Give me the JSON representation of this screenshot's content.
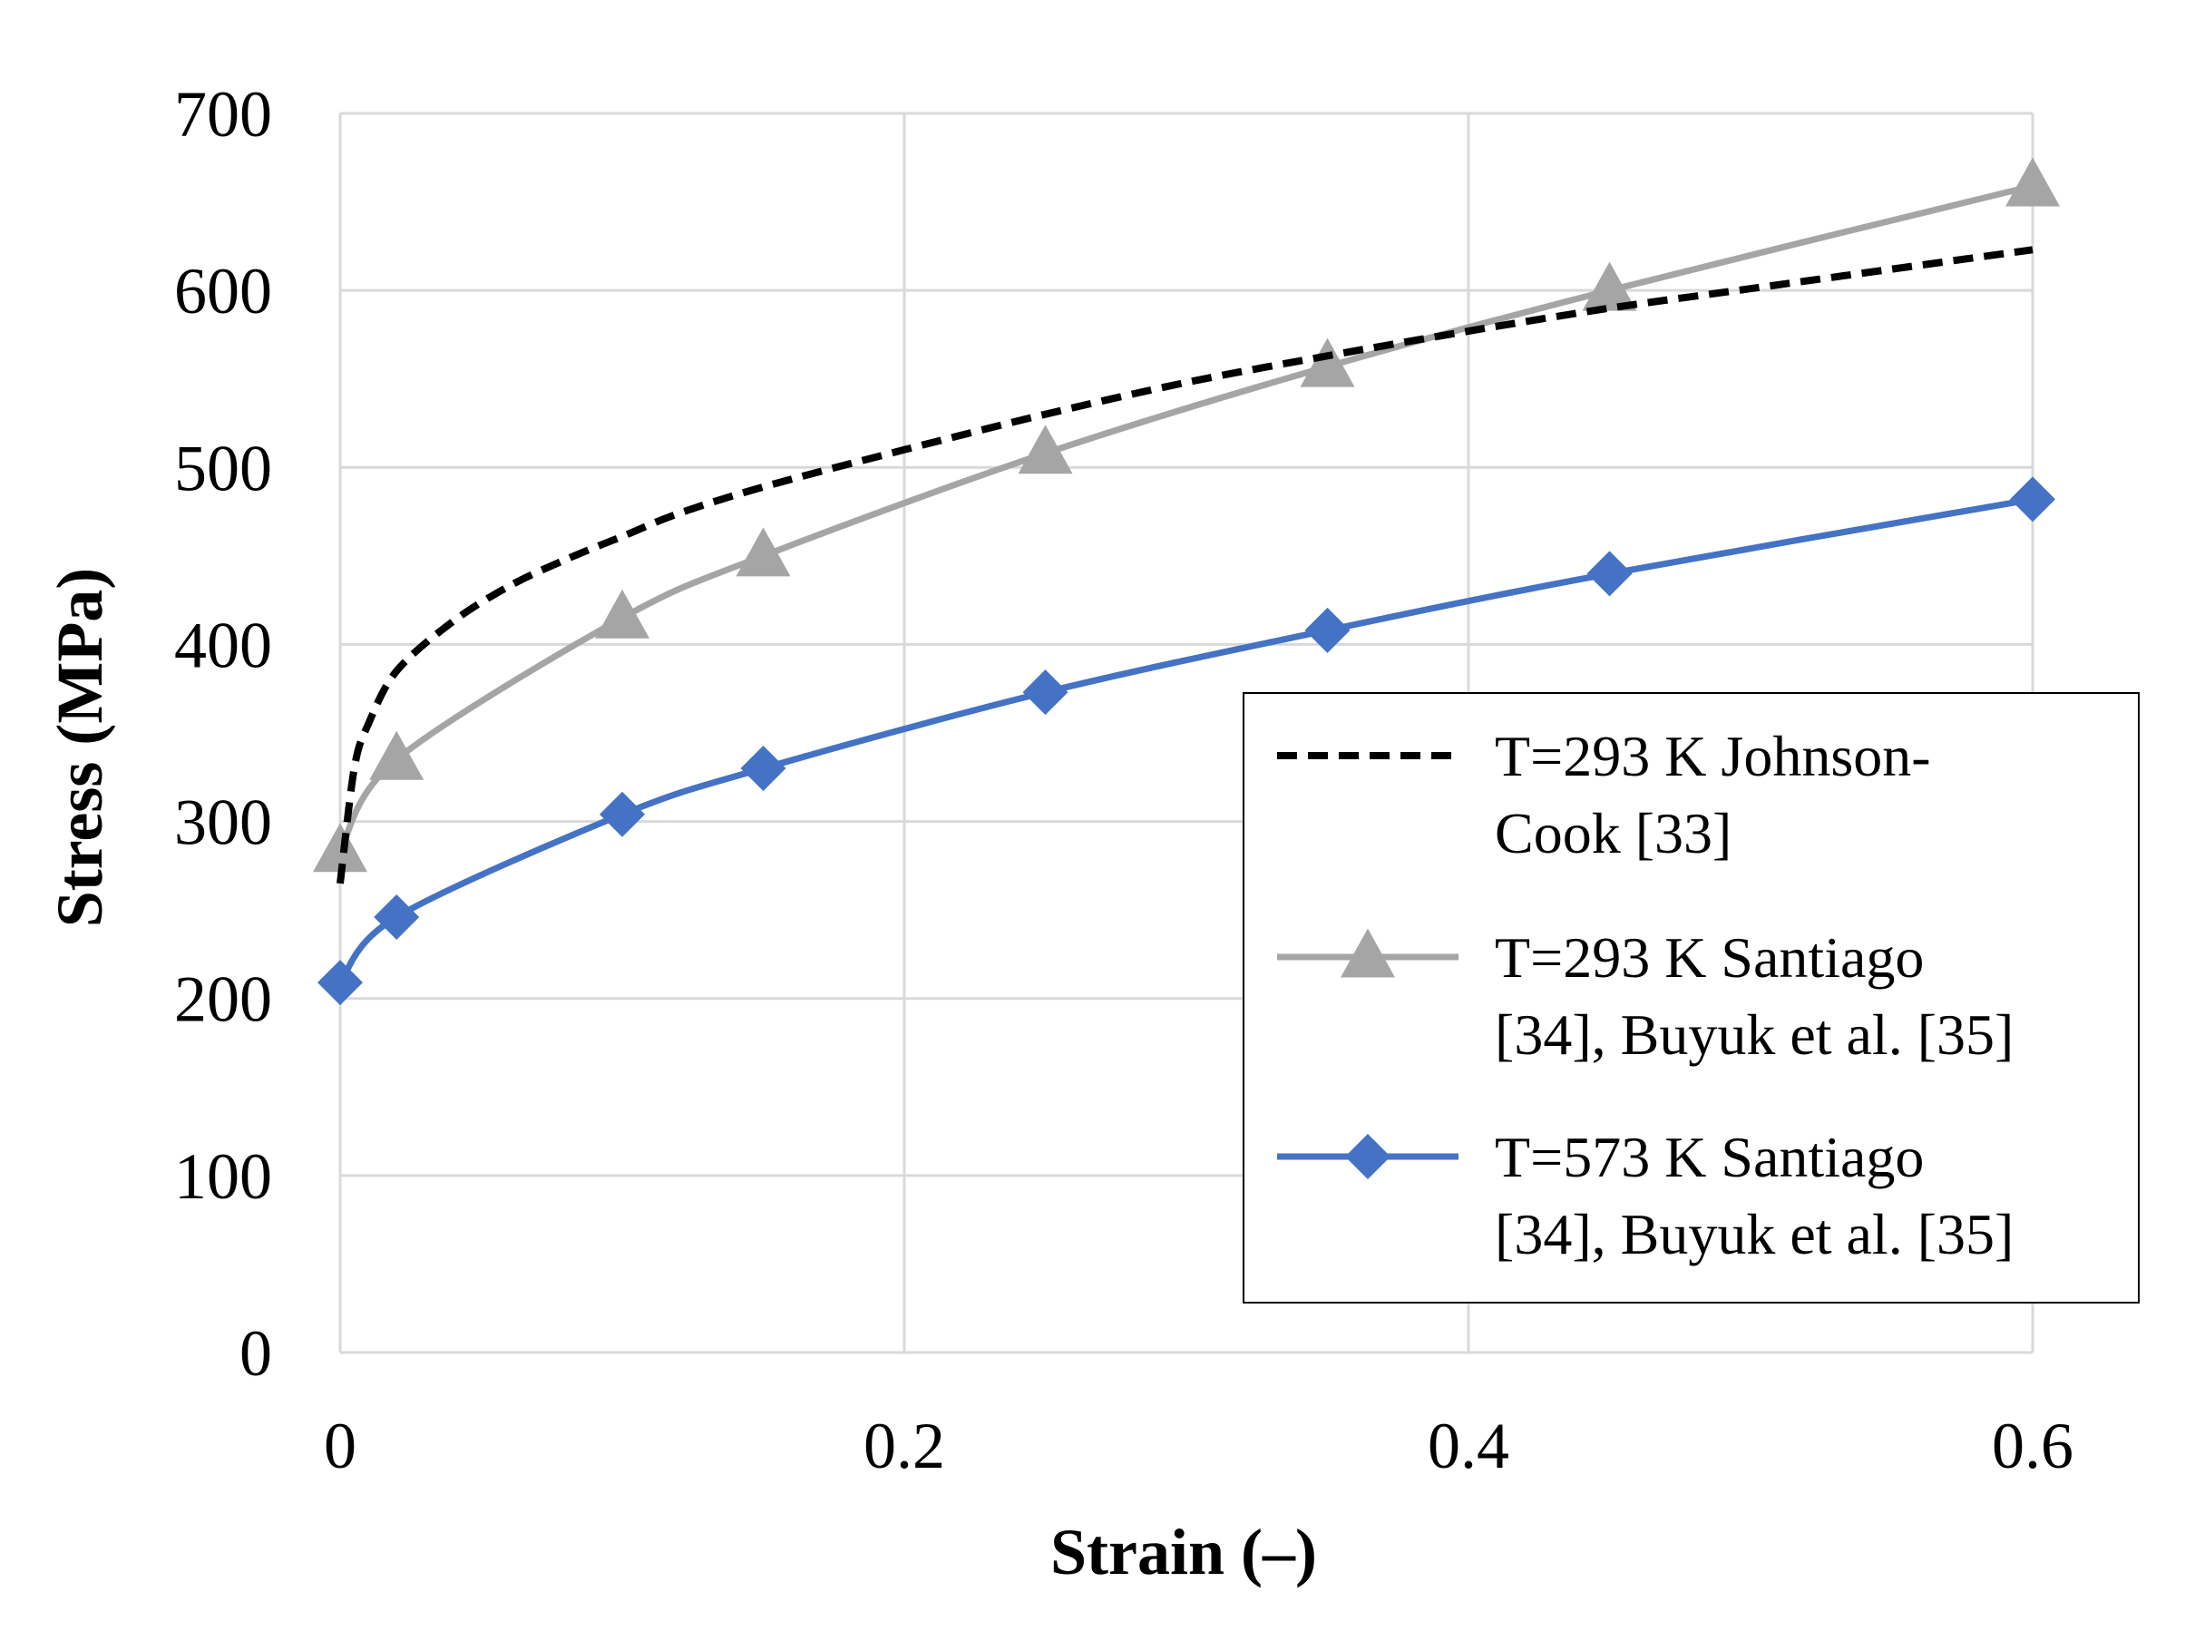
{
  "chart_data": {
    "type": "line",
    "xlabel": "Strain (–)",
    "ylabel": "Stress (MPa)",
    "xlim": [
      0,
      0.6
    ],
    "ylim": [
      0,
      700
    ],
    "x_ticks": [
      "0",
      "0.2",
      "0.4",
      "0.6"
    ],
    "y_ticks": [
      "0",
      "100",
      "200",
      "300",
      "400",
      "500",
      "600",
      "700"
    ],
    "grid": true,
    "legend_position": "bottom-right",
    "series": [
      {
        "name": "T=293 K Johnson-Cook [33]",
        "legend_lines": [
          "T=293 K Johnson-",
          "Cook [33]"
        ],
        "color": "#000000",
        "style": "dashed",
        "marker": "none",
        "x": [
          0,
          0.005,
          0.01,
          0.02,
          0.04,
          0.06,
          0.08,
          0.1,
          0.12,
          0.15,
          0.2,
          0.25,
          0.3,
          0.35,
          0.4,
          0.45,
          0.5,
          0.55,
          0.6
        ],
        "y": [
          265,
          330,
          355,
          385,
          413,
          433,
          448,
          461,
          474,
          489,
          510,
          530,
          548,
          563,
          577,
          590,
          601,
          612,
          623
        ]
      },
      {
        "name": "T=293 K Santiago [34], Buyuk et al. [35]",
        "legend_lines": [
          "T=293 K Santiago",
          "[34], Buyuk et al. [35]"
        ],
        "color": "#a5a5a5",
        "style": "solid",
        "marker": "triangle",
        "x": [
          0,
          0.02,
          0.1,
          0.15,
          0.25,
          0.35,
          0.45,
          0.6
        ],
        "y": [
          283,
          335,
          415,
          450,
          508,
          557,
          600,
          659
        ]
      },
      {
        "name": "T=573 K Santiago [34], Buyuk et al. [35]",
        "legend_lines": [
          "T=573 K Santiago",
          "[34], Buyuk et al. [35]"
        ],
        "color": "#4472c4",
        "style": "solid",
        "marker": "diamond",
        "x": [
          0,
          0.02,
          0.1,
          0.15,
          0.25,
          0.35,
          0.45,
          0.6
        ],
        "y": [
          209,
          246,
          304,
          330,
          373,
          408,
          440,
          482
        ]
      }
    ]
  }
}
